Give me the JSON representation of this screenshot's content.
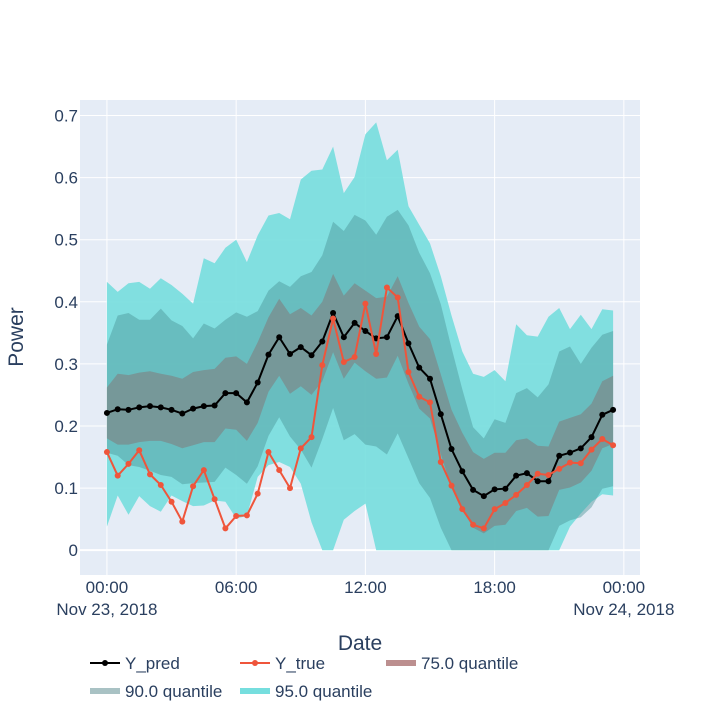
{
  "chart_data": {
    "type": "area",
    "xlabel": "Date",
    "ylabel": "Power",
    "x_ticks": [
      {
        "hour": 0,
        "label": "00:00",
        "sublabel": "Nov 23, 2018"
      },
      {
        "hour": 6,
        "label": "06:00",
        "sublabel": ""
      },
      {
        "hour": 12,
        "label": "12:00",
        "sublabel": ""
      },
      {
        "hour": 18,
        "label": "18:00",
        "sublabel": ""
      },
      {
        "hour": 24,
        "label": "00:00",
        "sublabel": "Nov 24, 2018"
      }
    ],
    "y_ticks": [
      0,
      0.1,
      0.2,
      0.3,
      0.4,
      0.5,
      0.6,
      0.7
    ],
    "y_tick_labels": [
      "0",
      "0.1",
      "0.2",
      "0.3",
      "0.4",
      "0.5",
      "0.6",
      "0.7"
    ],
    "xlim": [
      "2018-11-22 22:45",
      "2018-11-24 00:45"
    ],
    "ylim": [
      -0.04,
      0.725
    ],
    "grid": true,
    "legend_position": "bottom",
    "x": [
      "2018-11-23 00:00",
      "2018-11-23 00:30",
      "2018-11-23 01:00",
      "2018-11-23 01:30",
      "2018-11-23 02:00",
      "2018-11-23 02:30",
      "2018-11-23 03:00",
      "2018-11-23 03:30",
      "2018-11-23 04:00",
      "2018-11-23 04:30",
      "2018-11-23 05:00",
      "2018-11-23 05:30",
      "2018-11-23 06:00",
      "2018-11-23 06:30",
      "2018-11-23 07:00",
      "2018-11-23 07:30",
      "2018-11-23 08:00",
      "2018-11-23 08:30",
      "2018-11-23 09:00",
      "2018-11-23 09:30",
      "2018-11-23 10:00",
      "2018-11-23 10:30",
      "2018-11-23 11:00",
      "2018-11-23 11:30",
      "2018-11-23 12:00",
      "2018-11-23 12:30",
      "2018-11-23 13:00",
      "2018-11-23 13:30",
      "2018-11-23 14:00",
      "2018-11-23 14:30",
      "2018-11-23 15:00",
      "2018-11-23 15:30",
      "2018-11-23 16:00",
      "2018-11-23 16:30",
      "2018-11-23 17:00",
      "2018-11-23 17:30",
      "2018-11-23 18:00",
      "2018-11-23 18:30",
      "2018-11-23 19:00",
      "2018-11-23 19:30",
      "2018-11-23 20:00",
      "2018-11-23 20:30",
      "2018-11-23 21:00",
      "2018-11-23 21:30",
      "2018-11-23 22:00",
      "2018-11-23 22:30",
      "2018-11-23 23:00",
      "2018-11-23 23:30"
    ],
    "series": [
      {
        "name": "Y_pred",
        "color": "#000000",
        "marker": "circle",
        "values": [
          0.221,
          0.227,
          0.226,
          0.23,
          0.232,
          0.23,
          0.226,
          0.22,
          0.228,
          0.232,
          0.233,
          0.253,
          0.253,
          0.238,
          0.27,
          0.315,
          0.343,
          0.316,
          0.327,
          0.314,
          0.336,
          0.382,
          0.343,
          0.366,
          0.353,
          0.341,
          0.343,
          0.377,
          0.333,
          0.294,
          0.276,
          0.219,
          0.163,
          0.127,
          0.097,
          0.087,
          0.098,
          0.099,
          0.12,
          0.124,
          0.111,
          0.111,
          0.152,
          0.157,
          0.164,
          0.182,
          0.218,
          0.226
        ]
      },
      {
        "name": "Y_true",
        "color": "#ef553b",
        "marker": "circle",
        "values": [
          0.158,
          0.12,
          0.139,
          0.161,
          0.122,
          0.105,
          0.078,
          0.046,
          0.103,
          0.129,
          0.082,
          0.035,
          0.055,
          0.056,
          0.091,
          0.158,
          0.129,
          0.1,
          0.164,
          0.182,
          0.298,
          0.373,
          0.303,
          0.311,
          0.397,
          0.316,
          0.423,
          0.407,
          0.287,
          0.247,
          0.238,
          0.142,
          0.104,
          0.066,
          0.041,
          0.035,
          0.066,
          0.076,
          0.089,
          0.105,
          0.123,
          0.121,
          0.131,
          0.141,
          0.14,
          0.162,
          0.179,
          0.169
        ]
      },
      {
        "name": "75.0 quantile",
        "color": "#bc8f8f",
        "band": true,
        "upper": [
          0.262,
          0.284,
          0.282,
          0.286,
          0.288,
          0.284,
          0.281,
          0.276,
          0.287,
          0.29,
          0.292,
          0.31,
          0.312,
          0.3,
          0.335,
          0.375,
          0.405,
          0.38,
          0.39,
          0.378,
          0.4,
          0.445,
          0.41,
          0.43,
          0.418,
          0.406,
          0.408,
          0.441,
          0.398,
          0.36,
          0.34,
          0.283,
          0.226,
          0.189,
          0.158,
          0.147,
          0.157,
          0.157,
          0.177,
          0.18,
          0.168,
          0.167,
          0.207,
          0.213,
          0.219,
          0.236,
          0.272,
          0.281
        ],
        "lower": [
          0.18,
          0.17,
          0.17,
          0.174,
          0.176,
          0.176,
          0.171,
          0.164,
          0.169,
          0.174,
          0.174,
          0.196,
          0.194,
          0.176,
          0.205,
          0.255,
          0.281,
          0.252,
          0.264,
          0.25,
          0.272,
          0.319,
          0.276,
          0.302,
          0.288,
          0.276,
          0.278,
          0.313,
          0.268,
          0.228,
          0.212,
          0.155,
          0.1,
          0.065,
          0.036,
          0.027,
          0.039,
          0.041,
          0.063,
          0.068,
          0.054,
          0.055,
          0.097,
          0.101,
          0.109,
          0.128,
          0.164,
          0.171
        ]
      },
      {
        "name": "90.0 quantile",
        "color": "#a9c2c4",
        "band": true,
        "upper": [
          0.331,
          0.378,
          0.382,
          0.371,
          0.371,
          0.389,
          0.37,
          0.361,
          0.341,
          0.365,
          0.357,
          0.371,
          0.383,
          0.376,
          0.385,
          0.418,
          0.433,
          0.424,
          0.441,
          0.448,
          0.475,
          0.529,
          0.514,
          0.54,
          0.531,
          0.508,
          0.537,
          0.548,
          0.523,
          0.479,
          0.446,
          0.396,
          0.326,
          0.259,
          0.198,
          0.18,
          0.211,
          0.205,
          0.253,
          0.261,
          0.246,
          0.267,
          0.32,
          0.328,
          0.3,
          0.326,
          0.347,
          0.353
        ],
        "lower": [
          0.157,
          0.152,
          0.137,
          0.134,
          0.128,
          0.121,
          0.118,
          0.106,
          0.108,
          0.109,
          0.11,
          0.133,
          0.121,
          0.107,
          0.135,
          0.184,
          0.214,
          0.183,
          0.162,
          0.133,
          0.179,
          0.229,
          0.177,
          0.187,
          0.17,
          0.167,
          0.154,
          0.188,
          0.148,
          0.108,
          0.084,
          0.036,
          0.0,
          0.0,
          0.0,
          0.0,
          0.0,
          0.0,
          0.0,
          0.0,
          0.0,
          0.0,
          0.039,
          0.048,
          0.053,
          0.069,
          0.099,
          0.103
        ]
      },
      {
        "name": "95.0 quantile",
        "color": "#76dede",
        "band": true,
        "upper": [
          0.432,
          0.416,
          0.43,
          0.432,
          0.421,
          0.438,
          0.427,
          0.413,
          0.397,
          0.47,
          0.462,
          0.487,
          0.5,
          0.464,
          0.507,
          0.539,
          0.543,
          0.533,
          0.597,
          0.611,
          0.613,
          0.65,
          0.575,
          0.601,
          0.67,
          0.689,
          0.628,
          0.645,
          0.554,
          0.524,
          0.494,
          0.441,
          0.378,
          0.32,
          0.284,
          0.279,
          0.29,
          0.272,
          0.364,
          0.346,
          0.344,
          0.376,
          0.39,
          0.356,
          0.379,
          0.356,
          0.388,
          0.386
        ],
        "lower": [
          0.038,
          0.088,
          0.057,
          0.087,
          0.071,
          0.062,
          0.088,
          0.079,
          0.071,
          0.072,
          0.08,
          0.078,
          0.051,
          0.055,
          0.118,
          0.137,
          0.142,
          0.134,
          0.107,
          0.045,
          0.0,
          0.0,
          0.049,
          0.063,
          0.075,
          0.0,
          0.0,
          0.0,
          0.0,
          0.0,
          0.0,
          0.0,
          0.0,
          0.0,
          0.0,
          0.0,
          0.0,
          0.0,
          0.0,
          0.0,
          0.0,
          0.0,
          0.0,
          0.038,
          0.059,
          0.078,
          0.09,
          0.088
        ]
      }
    ]
  }
}
